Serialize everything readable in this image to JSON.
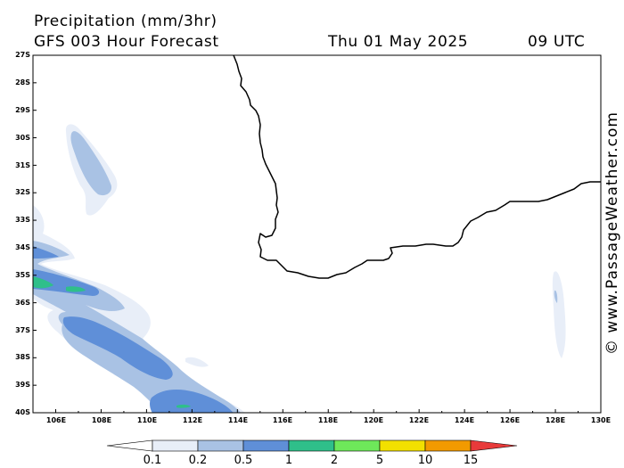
{
  "header": {
    "title": "Precipitation (mm/3hr)",
    "subtitle": "GFS 003 Hour Forecast",
    "date": "Thu 01 May 2025",
    "time": "09 UTC"
  },
  "watermark": "© www.PassageWeather.com",
  "map": {
    "lat_labels": [
      "27S",
      "28S",
      "29S",
      "30S",
      "31S",
      "32S",
      "33S",
      "34S",
      "35S",
      "36S",
      "37S",
      "38S",
      "39S",
      "40S"
    ],
    "lon_labels": [
      "106E",
      "108E",
      "110E",
      "112E",
      "114E",
      "116E",
      "118E",
      "120E",
      "122E",
      "124E",
      "126E",
      "128E",
      "130E"
    ],
    "lon_range": [
      105,
      130
    ],
    "lat_range": [
      -27,
      -40
    ],
    "land_region": "Southwest Western Australia"
  },
  "colorbar": {
    "labels": [
      "0.1",
      "0.2",
      "0.5",
      "1",
      "2",
      "5",
      "10",
      "15"
    ],
    "colors": [
      "#e8eef8",
      "#a9c2e4",
      "#5f8fd8",
      "#2fbf8a",
      "#6ee85a",
      "#f2e000",
      "#f29a00",
      "#e83a3a"
    ],
    "min_arrow_color": "#ffffff"
  },
  "colors": {
    "coastline": "#000000",
    "frame": "#000000"
  }
}
